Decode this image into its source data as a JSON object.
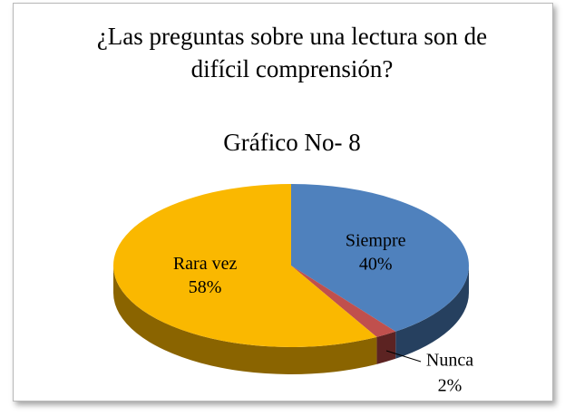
{
  "chart_data": {
    "type": "pie",
    "title": "¿Las preguntas sobre una lectura son de difícil comprensión?",
    "subtitle": "Gráfico No- 8",
    "categories": [
      "Siempre",
      "Nunca",
      "Rara vez"
    ],
    "values": [
      40,
      2,
      58
    ],
    "value_labels": [
      "40%",
      "2%",
      "58%"
    ],
    "colors": [
      "#4f81bd",
      "#c0504d",
      "#fab800"
    ],
    "side_colors": [
      "#26405f",
      "#5c2322",
      "#8a6400"
    ]
  }
}
